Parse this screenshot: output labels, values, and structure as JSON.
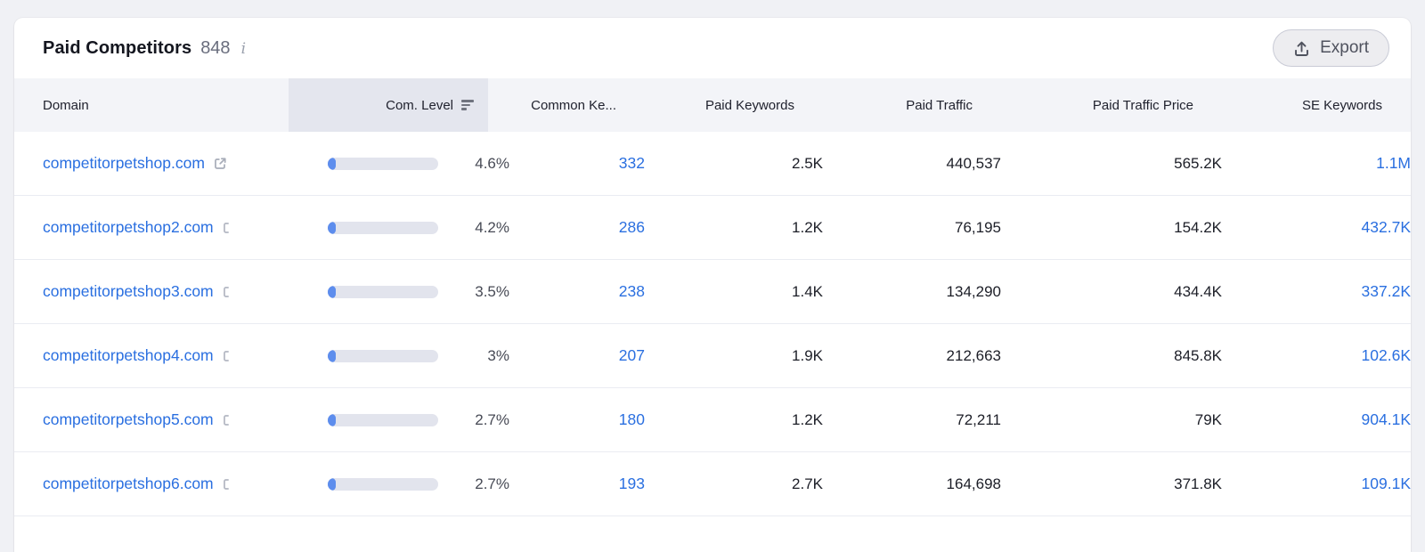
{
  "card": {
    "title": "Paid Competitors",
    "count": "848",
    "info_glyph": "i",
    "export": {
      "label": "Export",
      "icon": "upload-icon"
    }
  },
  "table": {
    "columns": [
      {
        "label": "Domain"
      },
      {
        "label": "Com. Level",
        "sorted": true,
        "sort_icon": "sort-descending-icon"
      },
      {
        "label": "Common Ke..."
      },
      {
        "label": "Paid Keywords"
      },
      {
        "label": "Paid Traffic"
      },
      {
        "label": "Paid Traffic Price"
      },
      {
        "label": "SE Keywords"
      }
    ],
    "rows": [
      {
        "domain": "competitorpetshop.com",
        "link_icon": "external-link-icon",
        "com_level": "4.6%",
        "com_level_pct": 4.6,
        "common_keywords": "332",
        "paid_keywords": "2.5K",
        "paid_traffic": "440,537",
        "paid_traffic_price": "565.2K",
        "se_keywords": "1.1M"
      },
      {
        "domain": "competitorpetshop2.com",
        "link_icon": "partial-external-link-icon",
        "com_level": "4.2%",
        "com_level_pct": 4.2,
        "common_keywords": "286",
        "paid_keywords": "1.2K",
        "paid_traffic": "76,195",
        "paid_traffic_price": "154.2K",
        "se_keywords": "432.7K"
      },
      {
        "domain": "competitorpetshop3.com",
        "link_icon": "partial-external-link-icon",
        "com_level": "3.5%",
        "com_level_pct": 3.5,
        "common_keywords": "238",
        "paid_keywords": "1.4K",
        "paid_traffic": "134,290",
        "paid_traffic_price": "434.4K",
        "se_keywords": "337.2K"
      },
      {
        "domain": "competitorpetshop4.com",
        "link_icon": "partial-external-link-icon",
        "com_level": "3%",
        "com_level_pct": 3.0,
        "common_keywords": "207",
        "paid_keywords": "1.9K",
        "paid_traffic": "212,663",
        "paid_traffic_price": "845.8K",
        "se_keywords": "102.6K"
      },
      {
        "domain": "competitorpetshop5.com",
        "link_icon": "partial-external-link-icon",
        "com_level": "2.7%",
        "com_level_pct": 2.7,
        "common_keywords": "180",
        "paid_keywords": "1.2K",
        "paid_traffic": "72,211",
        "paid_traffic_price": "79K",
        "se_keywords": "904.1K"
      },
      {
        "domain": "competitorpetshop6.com",
        "link_icon": "partial-external-link-icon",
        "com_level": "2.7%",
        "com_level_pct": 2.7,
        "common_keywords": "193",
        "paid_keywords": "2.7K",
        "paid_traffic": "164,698",
        "paid_traffic_price": "371.8K",
        "se_keywords": "109.1K"
      }
    ]
  },
  "colors": {
    "page_bg": "#f0f1f5",
    "card_bg": "#ffffff",
    "link_blue": "#2a6fe0",
    "bar_track": "#e2e4ed",
    "bar_fill": "#5d8ded",
    "table_header_bg": "#f3f4f8",
    "sorted_column_bg": "#e4e6ee",
    "text_dark": "#1c1e27",
    "text_gray": "#474a55",
    "row_divider": "#eaecf2"
  }
}
